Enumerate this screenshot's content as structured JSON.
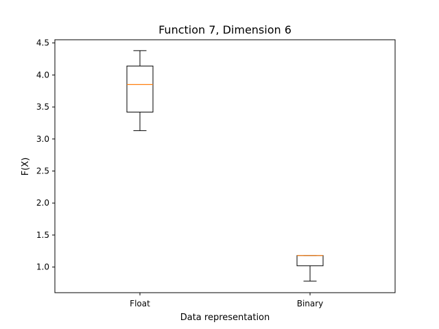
{
  "chart_data": {
    "type": "box",
    "title": "Function 7, Dimension 6",
    "xlabel": "Data representation",
    "ylabel": "F(X)",
    "ylim": [
      0.6,
      4.55
    ],
    "yticks": [
      1.0,
      1.5,
      2.0,
      2.5,
      3.0,
      3.5,
      4.0,
      4.5
    ],
    "ytick_labels": [
      "1.0",
      "1.5",
      "2.0",
      "2.5",
      "3.0",
      "3.5",
      "4.0",
      "4.5"
    ],
    "grid": false,
    "categories": [
      "Float",
      "Binary"
    ],
    "boxes": [
      {
        "label": "Float",
        "whisker_low": 3.13,
        "q1": 3.42,
        "median": 3.85,
        "q3": 4.14,
        "whisker_high": 4.38
      },
      {
        "label": "Binary",
        "whisker_low": 0.78,
        "q1": 1.02,
        "median": 1.18,
        "q3": 1.18,
        "whisker_high": 1.18
      }
    ],
    "colors": {
      "box": "#000000",
      "median": "#ff7f0e",
      "frame": "#000000"
    }
  }
}
